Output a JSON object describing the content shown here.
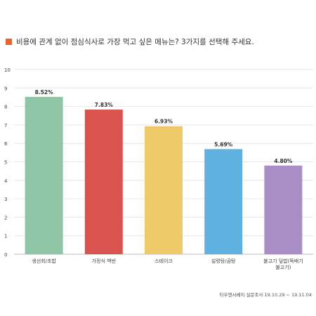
{
  "title": "비용에 관계 없이 점심식사로 가장 먹고 싶은 메뉴는?  3가지를 선택해 주세요.",
  "source": "타우엔서베이 설문조사 19.10.29 ~ 19.11.04",
  "colors": {
    "title_marker": "#e8632b",
    "grid": "#e6e6e6",
    "axis": "#bbbbbb",
    "label_text": "#333333"
  },
  "chart_data": {
    "type": "bar",
    "title": "비용에 관계 없이 점심식사로 가장 먹고 싶은 메뉴는?  3가지를 선택해 주세요.",
    "categories": [
      "생선회/초밥",
      "가정식 백반",
      "스테이크",
      "설렁탕/곰탕",
      "불고기 덮밥(뚝배기 불고기)"
    ],
    "category_labels": [
      [
        "생선회/초밥"
      ],
      [
        "가정식 백반"
      ],
      [
        "스테이크"
      ],
      [
        "설렁탕/곰탕"
      ],
      [
        "불고기 덮밥(뚝배기",
        "불고기)"
      ]
    ],
    "values": [
      8.52,
      7.83,
      6.93,
      5.69,
      4.8
    ],
    "value_labels": [
      "8.52%",
      "7.83%",
      "6.93%",
      "5.69%",
      "4.80%"
    ],
    "bar_colors": [
      "#8ec5a7",
      "#d9534f",
      "#edc968",
      "#5fb2e0",
      "#a98ec6"
    ],
    "yticks": [
      "0",
      "1",
      "2",
      "3",
      "4",
      "5",
      "6",
      "7",
      "8",
      "9",
      "10"
    ],
    "ylim": [
      0,
      10
    ],
    "grid": true,
    "legend": "none",
    "xlabel": "",
    "ylabel": ""
  }
}
